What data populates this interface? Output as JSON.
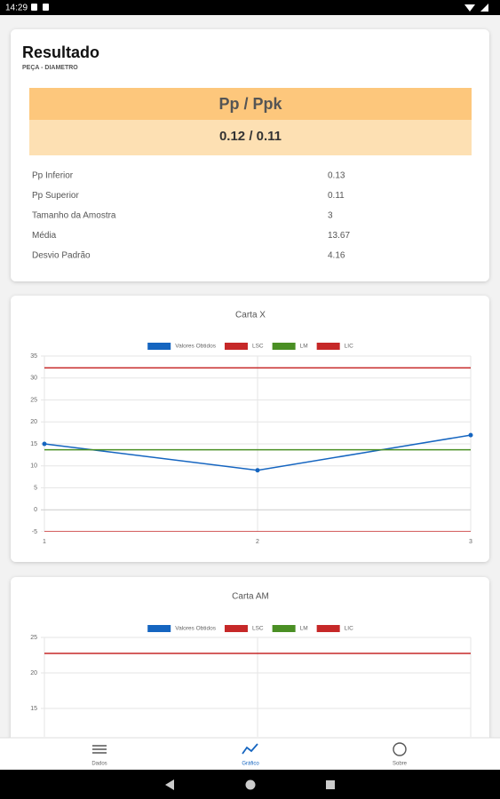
{
  "status_bar": {
    "time": "14:29"
  },
  "result": {
    "title": "Resultado",
    "subtitle": "PEÇA - DIAMETRO",
    "banner": {
      "label": "Pp / Ppk",
      "value": "0.12 / 0.11"
    },
    "rows": [
      {
        "label": "Pp Inferior",
        "value": 0.13
      },
      {
        "label": "Pp Superior",
        "value": 0.11
      },
      {
        "label": "Tamanho da Amostra",
        "value": 3
      },
      {
        "label": "Média",
        "value": 13.67
      },
      {
        "label": "Desvio Padrão",
        "value": 4.16
      }
    ]
  },
  "chart_data": [
    {
      "type": "line",
      "title": "Carta X",
      "categories": [
        "1",
        "2",
        "3"
      ],
      "series": [
        {
          "name": "Valores Obtidos",
          "color": "#1565c0",
          "values": [
            15,
            9,
            17
          ]
        },
        {
          "name": "LSC",
          "color": "#c62828",
          "values": [
            32.3,
            32.3,
            32.3
          ]
        },
        {
          "name": "LM",
          "color": "#4a8f24",
          "values": [
            13.67,
            13.67,
            13.67
          ]
        },
        {
          "name": "LIC",
          "color": "#c62828",
          "values": [
            -5,
            -5,
            -5
          ]
        }
      ],
      "ylim": [
        -5,
        35
      ],
      "yticks": [
        -5,
        0,
        5,
        10,
        15,
        20,
        25,
        30,
        35
      ],
      "grid": true
    },
    {
      "type": "line",
      "title": "Carta AM",
      "series": [
        {
          "name": "Valores Obtidos",
          "color": "#1565c0",
          "values": [
            null,
            null,
            null
          ]
        },
        {
          "name": "LSC",
          "color": "#c62828",
          "values": [
            22.75,
            22.75,
            22.75
          ]
        },
        {
          "name": "LM",
          "color": "#4a8f24",
          "values": [
            null,
            null,
            null
          ]
        },
        {
          "name": "LIC",
          "color": "#c62828",
          "values": [
            null,
            null,
            null
          ]
        }
      ],
      "ylim": [
        11,
        25
      ],
      "yticks": [
        15,
        20,
        25
      ],
      "grid": true
    }
  ],
  "nav": {
    "items": [
      "Dados",
      "Gráfico",
      "Sobre"
    ]
  }
}
